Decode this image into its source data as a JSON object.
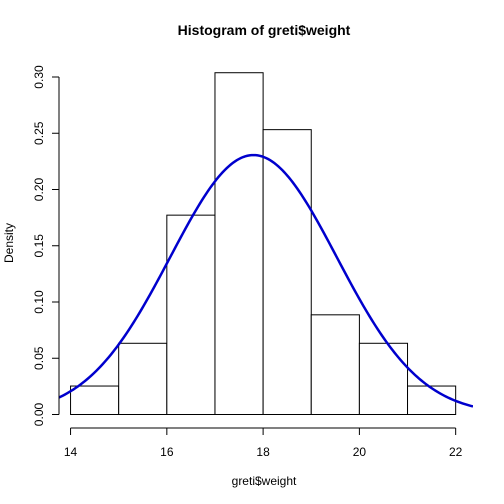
{
  "chart_data": {
    "type": "histogram",
    "title": "Histogram of greti$weight",
    "xlabel": "greti$weight",
    "ylabel": "Density",
    "bins": [
      {
        "x0": 14,
        "x1": 15,
        "density": 0.0253
      },
      {
        "x0": 15,
        "x1": 16,
        "density": 0.0633
      },
      {
        "x0": 16,
        "x1": 17,
        "density": 0.1772
      },
      {
        "x0": 17,
        "x1": 18,
        "density": 0.3038
      },
      {
        "x0": 18,
        "x1": 19,
        "density": 0.2532
      },
      {
        "x0": 19,
        "x1": 20,
        "density": 0.0886
      },
      {
        "x0": 20,
        "x1": 21,
        "density": 0.0633
      },
      {
        "x0": 21,
        "x1": 22,
        "density": 0.0253
      }
    ],
    "overlay": {
      "type": "normal-density-curve",
      "mean": 17.8,
      "sd": 1.73,
      "color": "#0000CD"
    },
    "x_ticks": [
      "14",
      "16",
      "18",
      "20",
      "22"
    ],
    "y_ticks": [
      "0.00",
      "0.05",
      "0.10",
      "0.15",
      "0.20",
      "0.25",
      "0.30"
    ],
    "xlim": [
      13.76,
      22.36
    ],
    "ylim": [
      -0.012,
      0.316
    ],
    "grid": false,
    "colors": {
      "bar_fill": "#FFFFFF",
      "bar_stroke": "#000000",
      "curve": "#0000CD"
    }
  }
}
